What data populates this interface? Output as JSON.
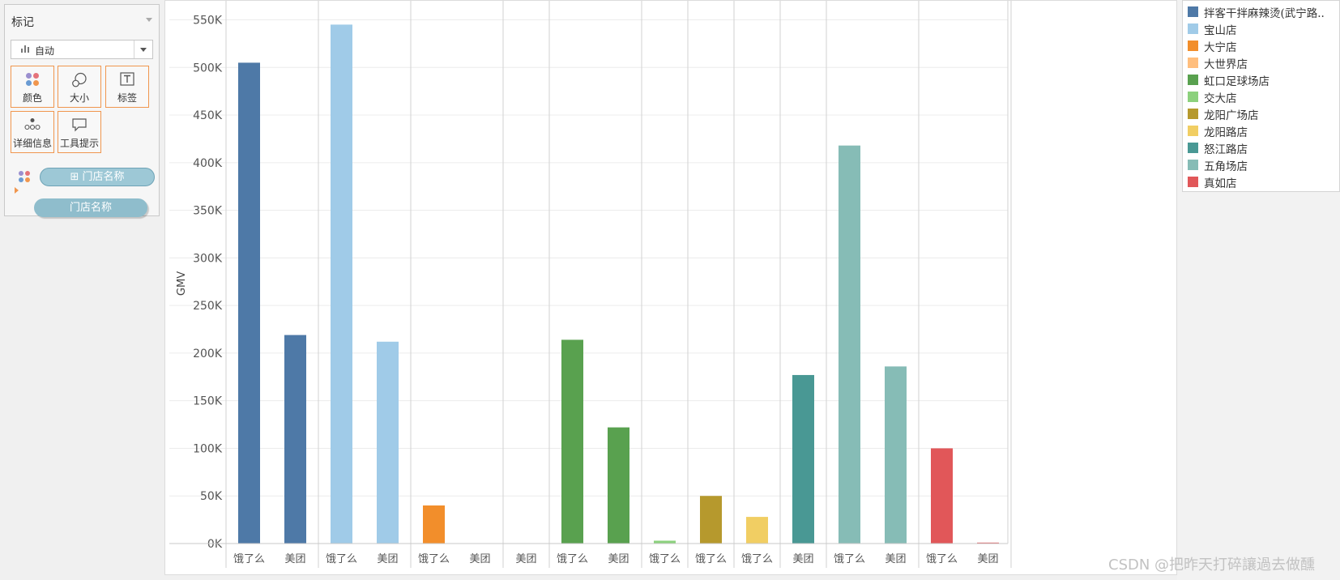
{
  "marks": {
    "title": "标记",
    "mark_type": "自动",
    "buttons": {
      "color": "颜色",
      "size": "大小",
      "label": "标签",
      "detail": "详细信息",
      "tooltip": "工具提示"
    },
    "color_pill": "⊞ 门店名称",
    "detail_pill": "门店名称"
  },
  "chart_data": {
    "type": "bar",
    "ylabel": "GMV",
    "ylim": [
      0,
      570000
    ],
    "yticks": [
      {
        "value": 0,
        "label": "0K"
      },
      {
        "value": 50000,
        "label": "50K"
      },
      {
        "value": 100000,
        "label": "100K"
      },
      {
        "value": 150000,
        "label": "150K"
      },
      {
        "value": 200000,
        "label": "200K"
      },
      {
        "value": 250000,
        "label": "250K"
      },
      {
        "value": 300000,
        "label": "300K"
      },
      {
        "value": 350000,
        "label": "350K"
      },
      {
        "value": 400000,
        "label": "400K"
      },
      {
        "value": 450000,
        "label": "450K"
      },
      {
        "value": 500000,
        "label": "500K"
      },
      {
        "value": 550000,
        "label": "550K"
      }
    ],
    "grid": true,
    "legend_position": "right",
    "groups": [
      {
        "store": "拌客干拌麻辣烫(武宁路..",
        "color": "#4e79a7",
        "bars": [
          {
            "platform": "饿了么",
            "value": 505000
          },
          {
            "platform": "美团",
            "value": 219000
          }
        ]
      },
      {
        "store": "宝山店",
        "color": "#a0cbe8",
        "bars": [
          {
            "platform": "饿了么",
            "value": 545000
          },
          {
            "platform": "美团",
            "value": 212000
          }
        ]
      },
      {
        "store": "大宁店",
        "color": "#f28e2b",
        "bars": [
          {
            "platform": "饿了么",
            "value": 40000
          },
          {
            "platform": "美团",
            "value": 0
          }
        ]
      },
      {
        "store": "大世界店",
        "color": "#ffbe7d",
        "bars": [
          {
            "platform": "美团",
            "value": 0
          }
        ]
      },
      {
        "store": "虹口足球场店",
        "color": "#59a14f",
        "bars": [
          {
            "platform": "饿了么",
            "value": 214000
          },
          {
            "platform": "美团",
            "value": 122000
          }
        ]
      },
      {
        "store": "交大店",
        "color": "#8cd17d",
        "bars": [
          {
            "platform": "饿了么",
            "value": 3000
          }
        ]
      },
      {
        "store": "龙阳广场店",
        "color": "#b6992d",
        "bars": [
          {
            "platform": "饿了么",
            "value": 50000
          }
        ]
      },
      {
        "store": "龙阳路店",
        "color": "#f1ce63",
        "bars": [
          {
            "platform": "饿了么",
            "value": 28000
          }
        ]
      },
      {
        "store": "怒江路店",
        "color": "#499894",
        "bars": [
          {
            "platform": "美团",
            "value": 177000
          }
        ]
      },
      {
        "store": "五角场店",
        "color": "#86bcb6",
        "bars": [
          {
            "platform": "饿了么",
            "value": 418000
          },
          {
            "platform": "美团",
            "value": 186000
          }
        ]
      },
      {
        "store": "真如店",
        "color": "#e15759",
        "bars": [
          {
            "platform": "饿了么",
            "value": 100000
          },
          {
            "platform": "美团",
            "value": 1000
          }
        ]
      }
    ]
  },
  "watermark": "CSDN @把昨天打碎讓過去做醺"
}
